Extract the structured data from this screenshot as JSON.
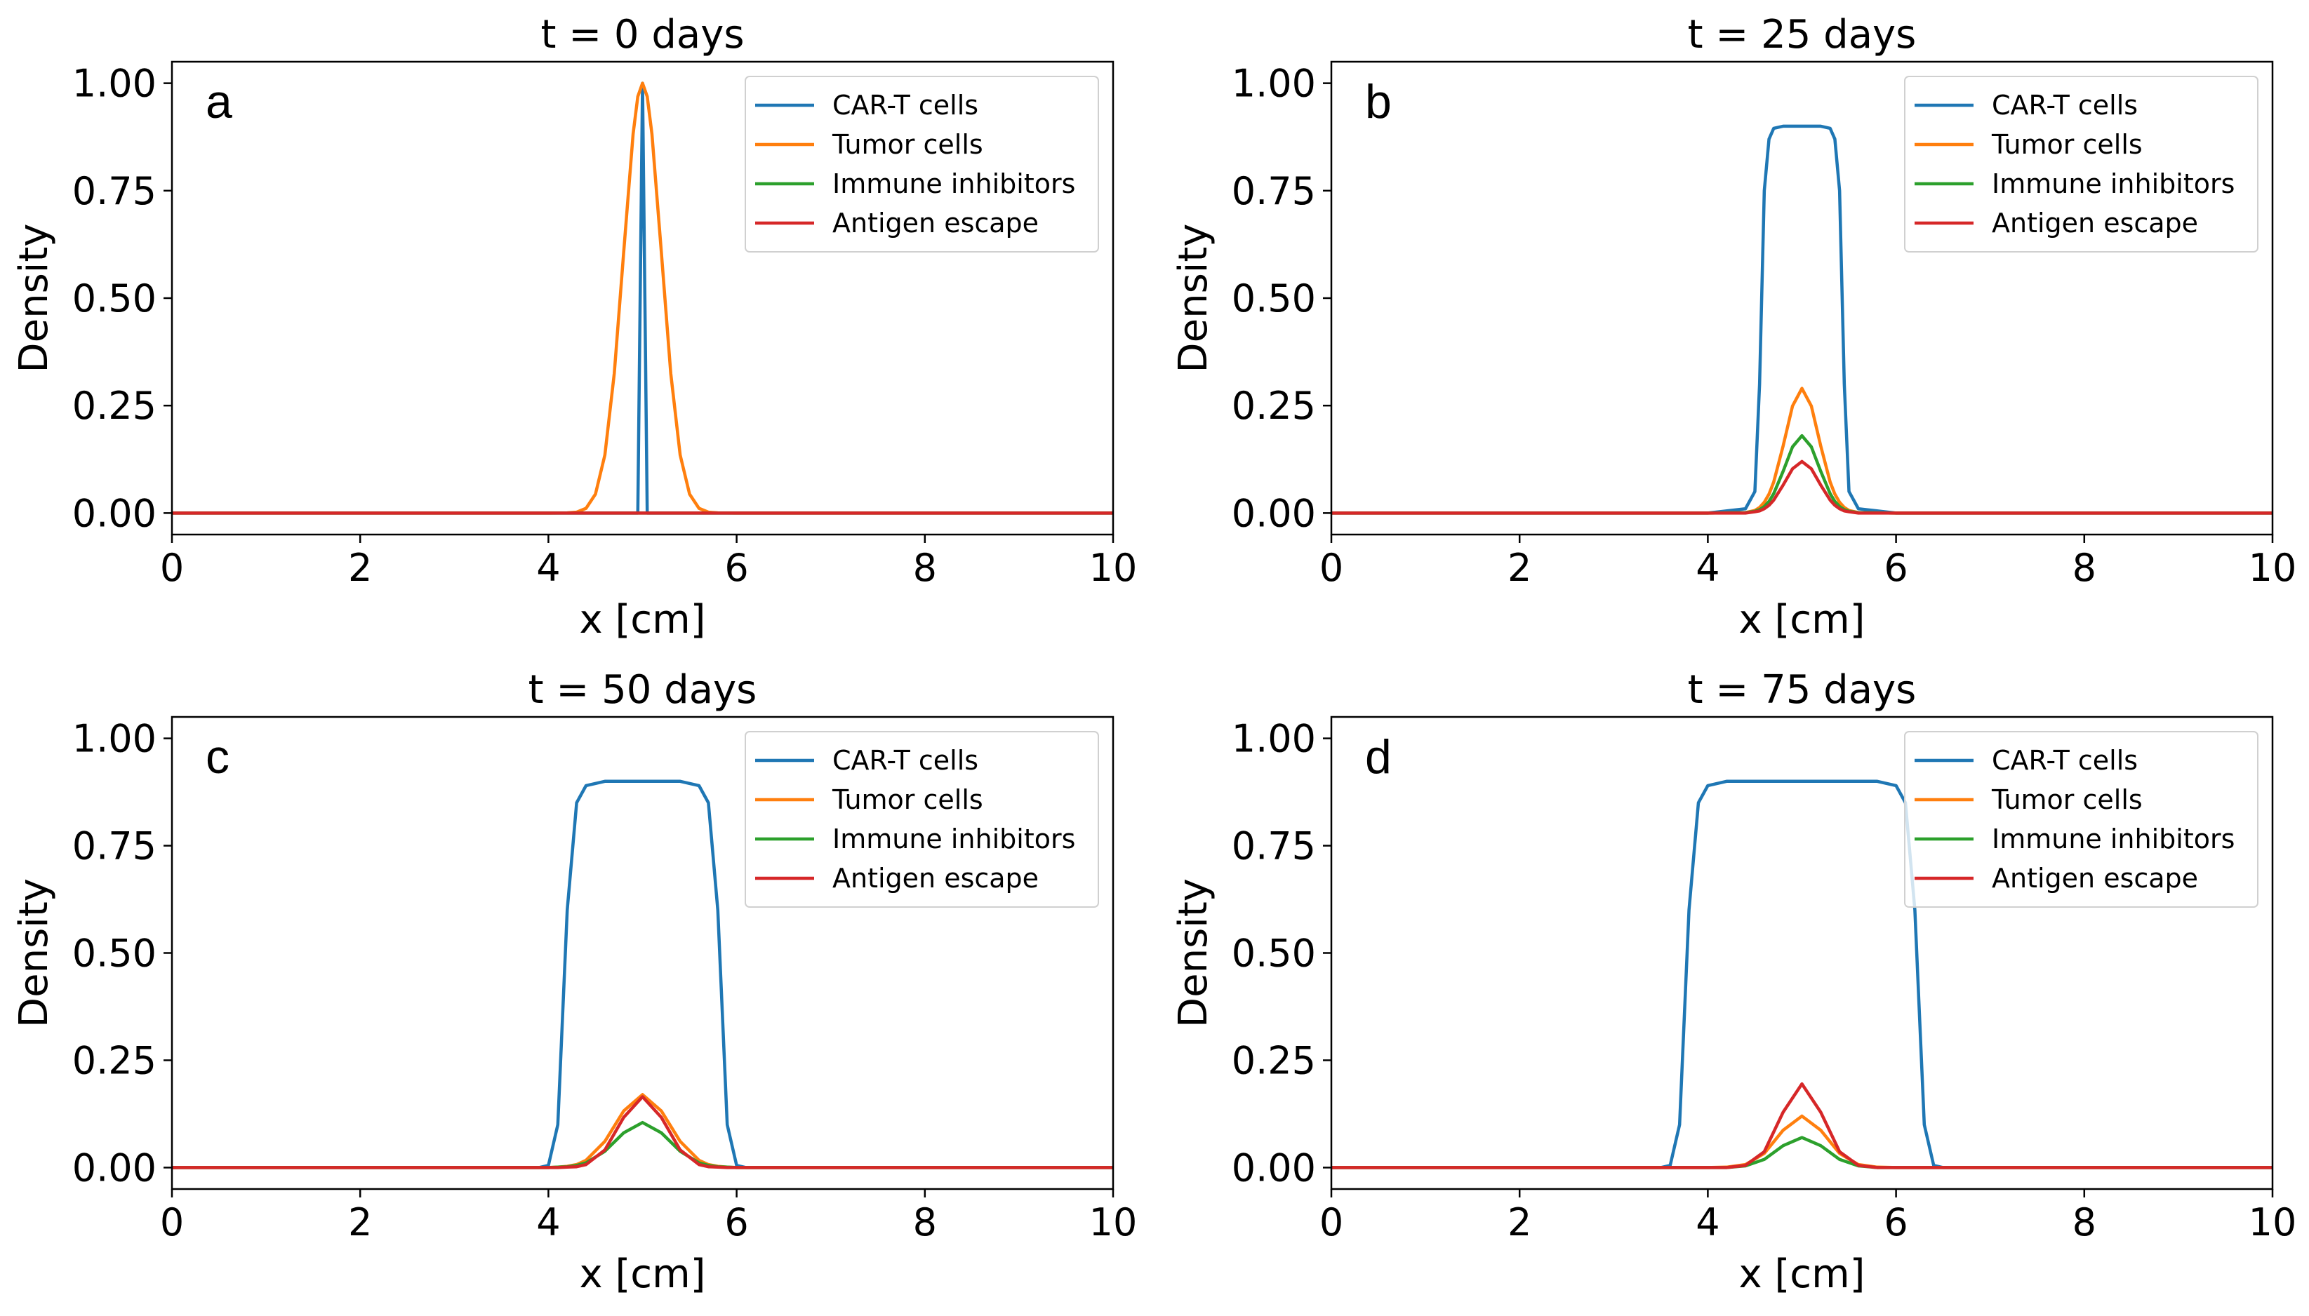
{
  "chart_data": [
    {
      "type": "line",
      "title": "t = 0 days",
      "annotation": "a",
      "xlabel": "x [cm]",
      "ylabel": "Density",
      "legend": "upper right",
      "x": [
        0,
        4,
        4.2,
        4.3,
        4.4,
        4.5,
        4.6,
        4.7,
        4.8,
        4.9,
        4.95,
        5,
        5.05,
        5.1,
        5.2,
        5.3,
        5.4,
        5.5,
        5.6,
        5.7,
        5.8,
        6,
        10
      ],
      "series": [
        {
          "name": "CAR-T cells",
          "color": "#1f77b4",
          "values": [
            0,
            0,
            0,
            0,
            0,
            0,
            0,
            0,
            0,
            0,
            0,
            1,
            0,
            0,
            0,
            0,
            0,
            0,
            0,
            0,
            0,
            0,
            0
          ]
        },
        {
          "name": "Tumor cells",
          "color": "#ff7f0e",
          "values": [
            0,
            0,
            0.0003,
            0.002,
            0.011,
            0.044,
            0.135,
            0.325,
            0.607,
            0.882,
            0.969,
            1,
            0.969,
            0.882,
            0.607,
            0.325,
            0.135,
            0.044,
            0.011,
            0.002,
            0.0003,
            0,
            0
          ]
        },
        {
          "name": "Immune inhibitors",
          "color": "#2ca02c",
          "values": [
            0,
            0,
            0,
            0,
            0,
            0,
            0,
            0,
            0,
            0,
            0,
            0,
            0,
            0,
            0,
            0,
            0,
            0,
            0,
            0,
            0,
            0,
            0
          ]
        },
        {
          "name": "Antigen escape",
          "color": "#d62728",
          "values": [
            0,
            0,
            0,
            0,
            0,
            0,
            0,
            0,
            0,
            0,
            0,
            0,
            0,
            0,
            0,
            0,
            0,
            0,
            0,
            0,
            0,
            0,
            0
          ]
        }
      ],
      "xlim": [
        0,
        10
      ],
      "ylim": [
        -0.05,
        1.05
      ],
      "xticks": [
        0,
        2,
        4,
        6,
        8,
        10
      ],
      "yticks": [
        {
          "value": 0,
          "label": "0.00"
        },
        {
          "value": 0.25,
          "label": "0.25"
        },
        {
          "value": 0.5,
          "label": "0.50"
        },
        {
          "value": 0.75,
          "label": "0.75"
        },
        {
          "value": 1,
          "label": "1.00"
        }
      ]
    },
    {
      "type": "line",
      "title": "t = 25 days",
      "annotation": "b",
      "xlabel": "x [cm]",
      "ylabel": "Density",
      "legend": "upper right",
      "x": [
        0,
        4,
        4.4,
        4.5,
        4.55,
        4.6,
        4.65,
        4.7,
        4.8,
        4.9,
        5,
        5.1,
        5.2,
        5.3,
        5.35,
        5.4,
        5.45,
        5.5,
        5.6,
        6,
        10
      ],
      "series": [
        {
          "name": "CAR-T cells",
          "color": "#1f77b4",
          "values": [
            0,
            0,
            0.01,
            0.05,
            0.3,
            0.75,
            0.87,
            0.895,
            0.9,
            0.9,
            0.9,
            0.9,
            0.9,
            0.895,
            0.87,
            0.75,
            0.3,
            0.05,
            0.01,
            0,
            0
          ]
        },
        {
          "name": "Tumor cells",
          "color": "#ff7f0e",
          "values": [
            0,
            0,
            0.001,
            0.006,
            0.013,
            0.025,
            0.044,
            0.072,
            0.156,
            0.249,
            0.29,
            0.249,
            0.156,
            0.072,
            0.044,
            0.025,
            0.013,
            0.006,
            0.001,
            0,
            0
          ]
        },
        {
          "name": "Immune inhibitors",
          "color": "#2ca02c",
          "values": [
            0,
            0,
            0.001,
            0.004,
            0.008,
            0.015,
            0.027,
            0.045,
            0.097,
            0.154,
            0.18,
            0.154,
            0.097,
            0.045,
            0.027,
            0.015,
            0.008,
            0.004,
            0.001,
            0,
            0
          ]
        },
        {
          "name": "Antigen escape",
          "color": "#d62728",
          "values": [
            0,
            0,
            0,
            0.003,
            0.005,
            0.01,
            0.018,
            0.03,
            0.065,
            0.103,
            0.12,
            0.103,
            0.065,
            0.03,
            0.018,
            0.01,
            0.005,
            0.003,
            0,
            0,
            0
          ]
        }
      ],
      "xlim": [
        0,
        10
      ],
      "ylim": [
        -0.05,
        1.05
      ],
      "xticks": [
        0,
        2,
        4,
        6,
        8,
        10
      ],
      "yticks": [
        {
          "value": 0,
          "label": "0.00"
        },
        {
          "value": 0.25,
          "label": "0.25"
        },
        {
          "value": 0.5,
          "label": "0.50"
        },
        {
          "value": 0.75,
          "label": "0.75"
        },
        {
          "value": 1,
          "label": "1.00"
        }
      ]
    },
    {
      "type": "line",
      "title": "t = 50 days",
      "annotation": "c",
      "xlabel": "x [cm]",
      "ylabel": "Density",
      "legend": "upper right",
      "x": [
        0,
        3.9,
        4.0,
        4.1,
        4.2,
        4.3,
        4.4,
        4.6,
        4.8,
        5,
        5.2,
        5.4,
        5.6,
        5.7,
        5.8,
        5.9,
        6.0,
        6.1,
        10
      ],
      "series": [
        {
          "name": "CAR-T cells",
          "color": "#1f77b4",
          "values": [
            0,
            0,
            0.005,
            0.1,
            0.6,
            0.85,
            0.89,
            0.9,
            0.9,
            0.9,
            0.9,
            0.9,
            0.89,
            0.85,
            0.6,
            0.1,
            0.005,
            0,
            0
          ]
        },
        {
          "name": "Tumor cells",
          "color": "#ff7f0e",
          "values": [
            0,
            0,
            0,
            0.001,
            0.003,
            0.007,
            0.017,
            0.061,
            0.132,
            0.17,
            0.132,
            0.061,
            0.017,
            0.007,
            0.003,
            0.001,
            0,
            0,
            0
          ]
        },
        {
          "name": "Immune inhibitors",
          "color": "#2ca02c",
          "values": [
            0,
            0,
            0,
            0.001,
            0.002,
            0.005,
            0.011,
            0.038,
            0.081,
            0.105,
            0.081,
            0.038,
            0.011,
            0.005,
            0.002,
            0.001,
            0,
            0,
            0
          ]
        },
        {
          "name": "Antigen escape",
          "color": "#d62728",
          "values": [
            0,
            0,
            0,
            0,
            0.001,
            0.002,
            0.007,
            0.041,
            0.117,
            0.165,
            0.117,
            0.041,
            0.007,
            0.002,
            0.001,
            0,
            0,
            0,
            0
          ]
        }
      ],
      "xlim": [
        0,
        10
      ],
      "ylim": [
        -0.05,
        1.05
      ],
      "xticks": [
        0,
        2,
        4,
        6,
        8,
        10
      ],
      "yticks": [
        {
          "value": 0,
          "label": "0.00"
        },
        {
          "value": 0.25,
          "label": "0.25"
        },
        {
          "value": 0.5,
          "label": "0.50"
        },
        {
          "value": 0.75,
          "label": "0.75"
        },
        {
          "value": 1,
          "label": "1.00"
        }
      ]
    },
    {
      "type": "line",
      "title": "t = 75 days",
      "annotation": "d",
      "xlabel": "x [cm]",
      "ylabel": "Density",
      "legend": "upper right",
      "x": [
        0,
        3.5,
        3.6,
        3.7,
        3.8,
        3.9,
        4.0,
        4.2,
        4.4,
        4.6,
        4.8,
        5,
        5.2,
        5.4,
        5.6,
        5.8,
        6.0,
        6.1,
        6.2,
        6.3,
        6.4,
        6.5,
        10
      ],
      "series": [
        {
          "name": "CAR-T cells",
          "color": "#1f77b4",
          "values": [
            0,
            0,
            0.005,
            0.1,
            0.6,
            0.85,
            0.89,
            0.9,
            0.9,
            0.9,
            0.9,
            0.9,
            0.9,
            0.9,
            0.9,
            0.9,
            0.89,
            0.85,
            0.6,
            0.1,
            0.005,
            0,
            0
          ]
        },
        {
          "name": "Tumor cells",
          "color": "#ff7f0e",
          "values": [
            0,
            0,
            0,
            0,
            0,
            0,
            0,
            0.001,
            0.007,
            0.033,
            0.087,
            0.12,
            0.087,
            0.033,
            0.007,
            0.001,
            0,
            0,
            0,
            0,
            0,
            0,
            0
          ]
        },
        {
          "name": "Immune inhibitors",
          "color": "#2ca02c",
          "values": [
            0,
            0,
            0,
            0,
            0,
            0,
            0,
            0,
            0.004,
            0.019,
            0.051,
            0.07,
            0.051,
            0.019,
            0.004,
            0,
            0,
            0,
            0,
            0,
            0,
            0,
            0
          ]
        },
        {
          "name": "Antigen escape",
          "color": "#d62728",
          "values": [
            0,
            0,
            0,
            0,
            0,
            0,
            0,
            0,
            0.005,
            0.037,
            0.129,
            0.195,
            0.129,
            0.037,
            0.005,
            0,
            0,
            0,
            0,
            0,
            0,
            0,
            0
          ]
        }
      ],
      "xlim": [
        0,
        10
      ],
      "ylim": [
        -0.05,
        1.05
      ],
      "xticks": [
        0,
        2,
        4,
        6,
        8,
        10
      ],
      "yticks": [
        {
          "value": 0,
          "label": "0.00"
        },
        {
          "value": 0.25,
          "label": "0.25"
        },
        {
          "value": 0.5,
          "label": "0.50"
        },
        {
          "value": 0.75,
          "label": "0.75"
        },
        {
          "value": 1,
          "label": "1.00"
        }
      ]
    }
  ]
}
